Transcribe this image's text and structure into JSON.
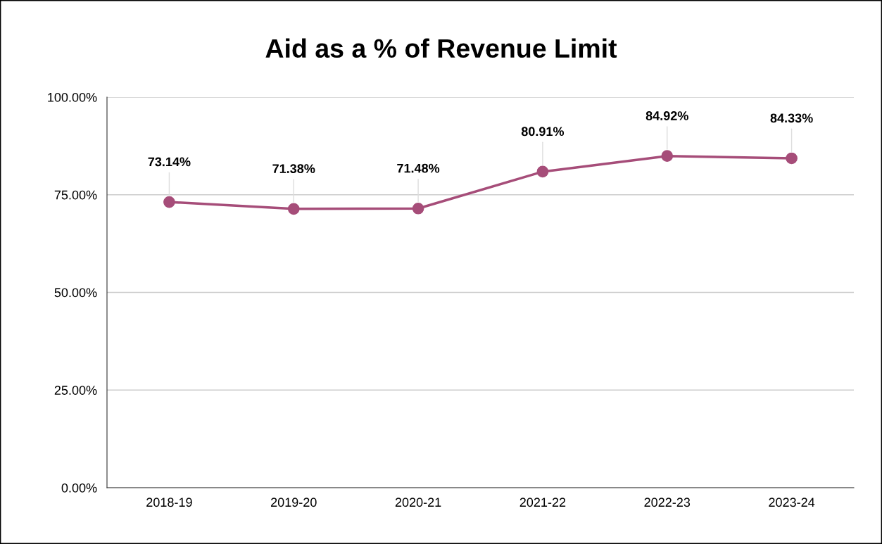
{
  "chart_data": {
    "type": "line",
    "title": "Aid as a % of Revenue Limit",
    "categories": [
      "2018-19",
      "2019-20",
      "2020-21",
      "2021-22",
      "2022-23",
      "2023-24"
    ],
    "series": [
      {
        "color": "#a64d79",
        "values": [
          73.14,
          71.38,
          71.48,
          80.91,
          84.92,
          84.33
        ],
        "value_labels": [
          "73.14%",
          "71.38%",
          "71.48%",
          "80.91%",
          "84.92%",
          "84.33%"
        ]
      }
    ],
    "ylim": [
      0,
      100
    ],
    "yticks": [
      {
        "value": 0,
        "label": "0.00%"
      },
      {
        "value": 25,
        "label": "25.00%"
      },
      {
        "value": 50,
        "label": "50.00%"
      },
      {
        "value": 75,
        "label": "75.00%"
      },
      {
        "value": 100,
        "label": "100.00%"
      }
    ],
    "grid": "y",
    "marker": "circle",
    "line_style": "solid"
  }
}
